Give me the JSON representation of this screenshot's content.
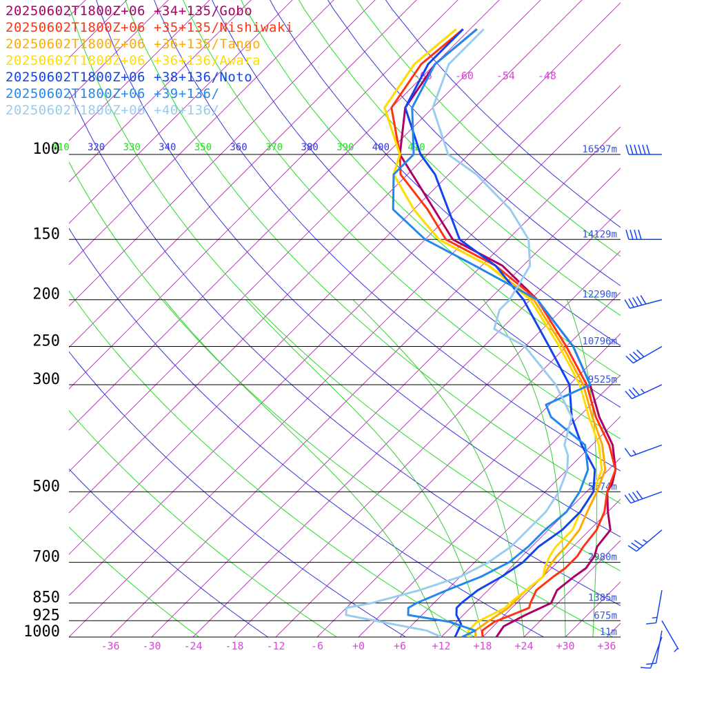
{
  "chart_data": {
    "type": "line",
    "subtype": "skew-T log-p sounding",
    "title": "",
    "xlabel": "",
    "ylabel": "",
    "ylim": [
      1000,
      100
    ],
    "xlim": [
      -36,
      36
    ],
    "grid": true,
    "legend_position": "top-left",
    "pressure_levels": [
      {
        "p": 100,
        "label": "100",
        "height": "16597m"
      },
      {
        "p": 150,
        "label": "150",
        "height": "14129m"
      },
      {
        "p": 200,
        "label": "200",
        "height": "12290m"
      },
      {
        "p": 250,
        "label": "250",
        "height": "10796m"
      },
      {
        "p": 300,
        "label": "300",
        "height": "9525m"
      },
      {
        "p": 500,
        "label": "500",
        "height": "5674m"
      },
      {
        "p": 700,
        "label": "700",
        "height": "2980m"
      },
      {
        "p": 850,
        "label": "850",
        "height": "1385m"
      },
      {
        "p": 925,
        "label": "925",
        "height": "675m"
      },
      {
        "p": 1000,
        "label": "1000",
        "height": "11m"
      }
    ],
    "temperature_ticks": [
      "-36",
      "-30",
      "-24",
      "-18",
      "-12",
      "-6",
      "+0",
      "+6",
      "+12",
      "+18",
      "+24",
      "+30",
      "+36"
    ],
    "temperature_tick_values": [
      -36,
      -30,
      -24,
      -18,
      -12,
      -6,
      0,
      6,
      12,
      18,
      24,
      30,
      36
    ],
    "upper_isotherm_labels": [
      "-66",
      "-60",
      "-54",
      "-48"
    ],
    "upper_isotherm_values": [
      -66,
      -60,
      -54,
      -48
    ],
    "theta_labels": [
      "310",
      "320",
      "330",
      "340",
      "350",
      "360",
      "370",
      "380",
      "390",
      "400",
      "410"
    ],
    "theta_values": [
      310,
      320,
      330,
      340,
      350,
      360,
      370,
      380,
      390,
      400,
      410
    ],
    "series": [
      {
        "name": "20250602T1800Z+06 +34+135/Gobo",
        "color": "#aa0066",
        "points": [
          [
            1000,
            20
          ],
          [
            950,
            19.5
          ],
          [
            900,
            21
          ],
          [
            850,
            23
          ],
          [
            800,
            22
          ],
          [
            750,
            22.5
          ],
          [
            720,
            23
          ],
          [
            680,
            22.5
          ],
          [
            650,
            21.5
          ],
          [
            600,
            21
          ],
          [
            550,
            18
          ],
          [
            500,
            15
          ],
          [
            480,
            14.5
          ],
          [
            450,
            13
          ],
          [
            400,
            9
          ],
          [
            350,
            3
          ],
          [
            300,
            -3
          ],
          [
            250,
            -11
          ],
          [
            200,
            -23
          ],
          [
            170,
            -33
          ],
          [
            150,
            -44
          ],
          [
            120,
            -55
          ],
          [
            100,
            -64
          ],
          [
            80,
            -70
          ],
          [
            65,
            -72
          ],
          [
            55,
            -71
          ]
        ]
      },
      {
        "name": "20250602T1800Z+06 +35+135/Nishiwaki",
        "color": "#ff3311",
        "points": [
          [
            1000,
            18
          ],
          [
            970,
            17
          ],
          [
            930,
            17.5
          ],
          [
            900,
            19
          ],
          [
            870,
            20.5
          ],
          [
            850,
            20
          ],
          [
            800,
            19
          ],
          [
            750,
            19.5
          ],
          [
            720,
            20
          ],
          [
            680,
            20
          ],
          [
            650,
            19.5
          ],
          [
            600,
            19
          ],
          [
            550,
            17.5
          ],
          [
            500,
            15
          ],
          [
            450,
            13
          ],
          [
            400,
            8.5
          ],
          [
            350,
            2.5
          ],
          [
            300,
            -3.5
          ],
          [
            250,
            -12
          ],
          [
            200,
            -23
          ],
          [
            170,
            -34
          ],
          [
            150,
            -45
          ],
          [
            130,
            -52
          ],
          [
            110,
            -61
          ],
          [
            100,
            -64
          ],
          [
            80,
            -72
          ],
          [
            65,
            -74
          ],
          [
            55,
            -73
          ]
        ]
      },
      {
        "name": "20250602T1800Z+06 +36+135/Tango",
        "color": "#ffaa00",
        "points": [
          [
            1000,
            17
          ],
          [
            970,
            16
          ],
          [
            930,
            16.5
          ],
          [
            900,
            17
          ],
          [
            870,
            17.5
          ],
          [
            850,
            17.5
          ],
          [
            800,
            17.5
          ],
          [
            750,
            18
          ],
          [
            720,
            17.5
          ],
          [
            680,
            17
          ],
          [
            650,
            17
          ],
          [
            600,
            16.5
          ],
          [
            550,
            15
          ],
          [
            500,
            13.5
          ],
          [
            450,
            11.5
          ],
          [
            400,
            7.5
          ],
          [
            350,
            2
          ],
          [
            300,
            -4
          ],
          [
            250,
            -12.5
          ],
          [
            200,
            -23.5
          ],
          [
            170,
            -35
          ],
          [
            150,
            -46
          ],
          [
            130,
            -54
          ],
          [
            110,
            -62
          ],
          [
            100,
            -64
          ],
          [
            80,
            -73
          ],
          [
            65,
            -75
          ],
          [
            55,
            -74
          ]
        ]
      },
      {
        "name": "20250602T1800Z+06 +36+136/Awara",
        "color": "#ffdd00",
        "points": [
          [
            1000,
            16
          ],
          [
            970,
            15
          ],
          [
            930,
            15
          ],
          [
            900,
            16
          ],
          [
            870,
            17
          ],
          [
            850,
            17
          ],
          [
            800,
            17.5
          ],
          [
            750,
            18
          ],
          [
            720,
            17
          ],
          [
            680,
            16
          ],
          [
            650,
            15.5
          ],
          [
            600,
            15.5
          ],
          [
            550,
            14
          ],
          [
            500,
            13
          ],
          [
            450,
            11
          ],
          [
            400,
            7
          ],
          [
            350,
            1.5
          ],
          [
            300,
            -4.5
          ],
          [
            250,
            -13
          ],
          [
            200,
            -24
          ],
          [
            170,
            -35
          ],
          [
            150,
            -46
          ],
          [
            130,
            -54
          ],
          [
            110,
            -62
          ],
          [
            100,
            -64
          ],
          [
            80,
            -73
          ],
          [
            65,
            -75
          ],
          [
            55,
            -74
          ]
        ]
      },
      {
        "name": "20250602T1800Z+06 +38+136/Noto",
        "color": "#1144ee",
        "points": [
          [
            1000,
            14
          ],
          [
            970,
            13.5
          ],
          [
            940,
            13
          ],
          [
            900,
            11
          ],
          [
            870,
            10
          ],
          [
            850,
            10
          ],
          [
            800,
            10.5
          ],
          [
            750,
            12
          ],
          [
            700,
            13
          ],
          [
            650,
            13
          ],
          [
            600,
            14
          ],
          [
            550,
            14
          ],
          [
            500,
            13
          ],
          [
            450,
            10
          ],
          [
            400,
            4.5
          ],
          [
            350,
            -1
          ],
          [
            300,
            -6
          ],
          [
            250,
            -14.5
          ],
          [
            200,
            -25
          ],
          [
            170,
            -34
          ],
          [
            150,
            -43
          ],
          [
            130,
            -49
          ],
          [
            110,
            -56
          ],
          [
            100,
            -61
          ],
          [
            80,
            -70
          ],
          [
            65,
            -73
          ],
          [
            55,
            -73
          ]
        ]
      },
      {
        "name": "20250602T1800Z+06 +39+136/",
        "color": "#2288ee",
        "points": [
          [
            1000,
            15
          ],
          [
            970,
            16
          ],
          [
            930,
            11
          ],
          [
            900,
            4
          ],
          [
            870,
            3
          ],
          [
            850,
            3.5
          ],
          [
            800,
            6
          ],
          [
            750,
            9
          ],
          [
            700,
            11
          ],
          [
            650,
            11.5
          ],
          [
            600,
            11.5
          ],
          [
            550,
            12
          ],
          [
            500,
            11
          ],
          [
            450,
            9
          ],
          [
            400,
            5
          ],
          [
            350,
            -4
          ],
          [
            330,
            -6.5
          ],
          [
            300,
            -3
          ],
          [
            250,
            -11
          ],
          [
            200,
            -23
          ],
          [
            170,
            -37
          ],
          [
            150,
            -48
          ],
          [
            130,
            -57
          ],
          [
            110,
            -62
          ],
          [
            100,
            -62
          ],
          [
            80,
            -69
          ],
          [
            65,
            -72
          ],
          [
            55,
            -71
          ]
        ]
      },
      {
        "name": "20250602T1800Z+06 +40+136/",
        "color": "#99ccee",
        "points": [
          [
            1000,
            12
          ],
          [
            970,
            9
          ],
          [
            930,
            1
          ],
          [
            900,
            -5
          ],
          [
            870,
            -6
          ],
          [
            850,
            -3
          ],
          [
            800,
            2
          ],
          [
            750,
            6
          ],
          [
            700,
            8
          ],
          [
            650,
            9
          ],
          [
            600,
            9
          ],
          [
            550,
            9
          ],
          [
            500,
            8
          ],
          [
            450,
            6
          ],
          [
            420,
            4
          ],
          [
            400,
            2
          ],
          [
            350,
            -1
          ],
          [
            300,
            -8
          ],
          [
            250,
            -18
          ],
          [
            230,
            -25
          ],
          [
            210,
            -27
          ],
          [
            200,
            -27
          ],
          [
            170,
            -29
          ],
          [
            150,
            -33
          ],
          [
            130,
            -40
          ],
          [
            110,
            -50
          ],
          [
            100,
            -57
          ],
          [
            80,
            -66
          ],
          [
            65,
            -70
          ],
          [
            55,
            -70
          ]
        ]
      }
    ],
    "wind_barbs": [
      {
        "p": 100,
        "speed_kt": 60,
        "dir_deg": 270
      },
      {
        "p": 150,
        "speed_kt": 40,
        "dir_deg": 270
      },
      {
        "p": 200,
        "speed_kt": 50,
        "dir_deg": 255
      },
      {
        "p": 250,
        "speed_kt": 40,
        "dir_deg": 240
      },
      {
        "p": 300,
        "speed_kt": 35,
        "dir_deg": 245
      },
      {
        "p": 400,
        "speed_kt": 15,
        "dir_deg": 250
      },
      {
        "p": 500,
        "speed_kt": 40,
        "dir_deg": 250
      },
      {
        "p": 600,
        "speed_kt": 35,
        "dir_deg": 230
      },
      {
        "p": 800,
        "speed_kt": 15,
        "dir_deg": 190
      },
      {
        "p": 925,
        "speed_kt": 5,
        "dir_deg": 150
      },
      {
        "p": 970,
        "speed_kt": 10,
        "dir_deg": 190
      },
      {
        "p": 1000,
        "speed_kt": 10,
        "dir_deg": 200
      }
    ],
    "colors": {
      "isobar": "#000000",
      "isotherm": "#dd22dd",
      "dry_adiabat_a": "#3333dd",
      "dry_adiabat_b": "#22dd22",
      "moist_adiabat": "#33cc33",
      "height_label": "#3355dd",
      "temp_tick": "#dd44dd",
      "wind": "#1144ee"
    }
  }
}
